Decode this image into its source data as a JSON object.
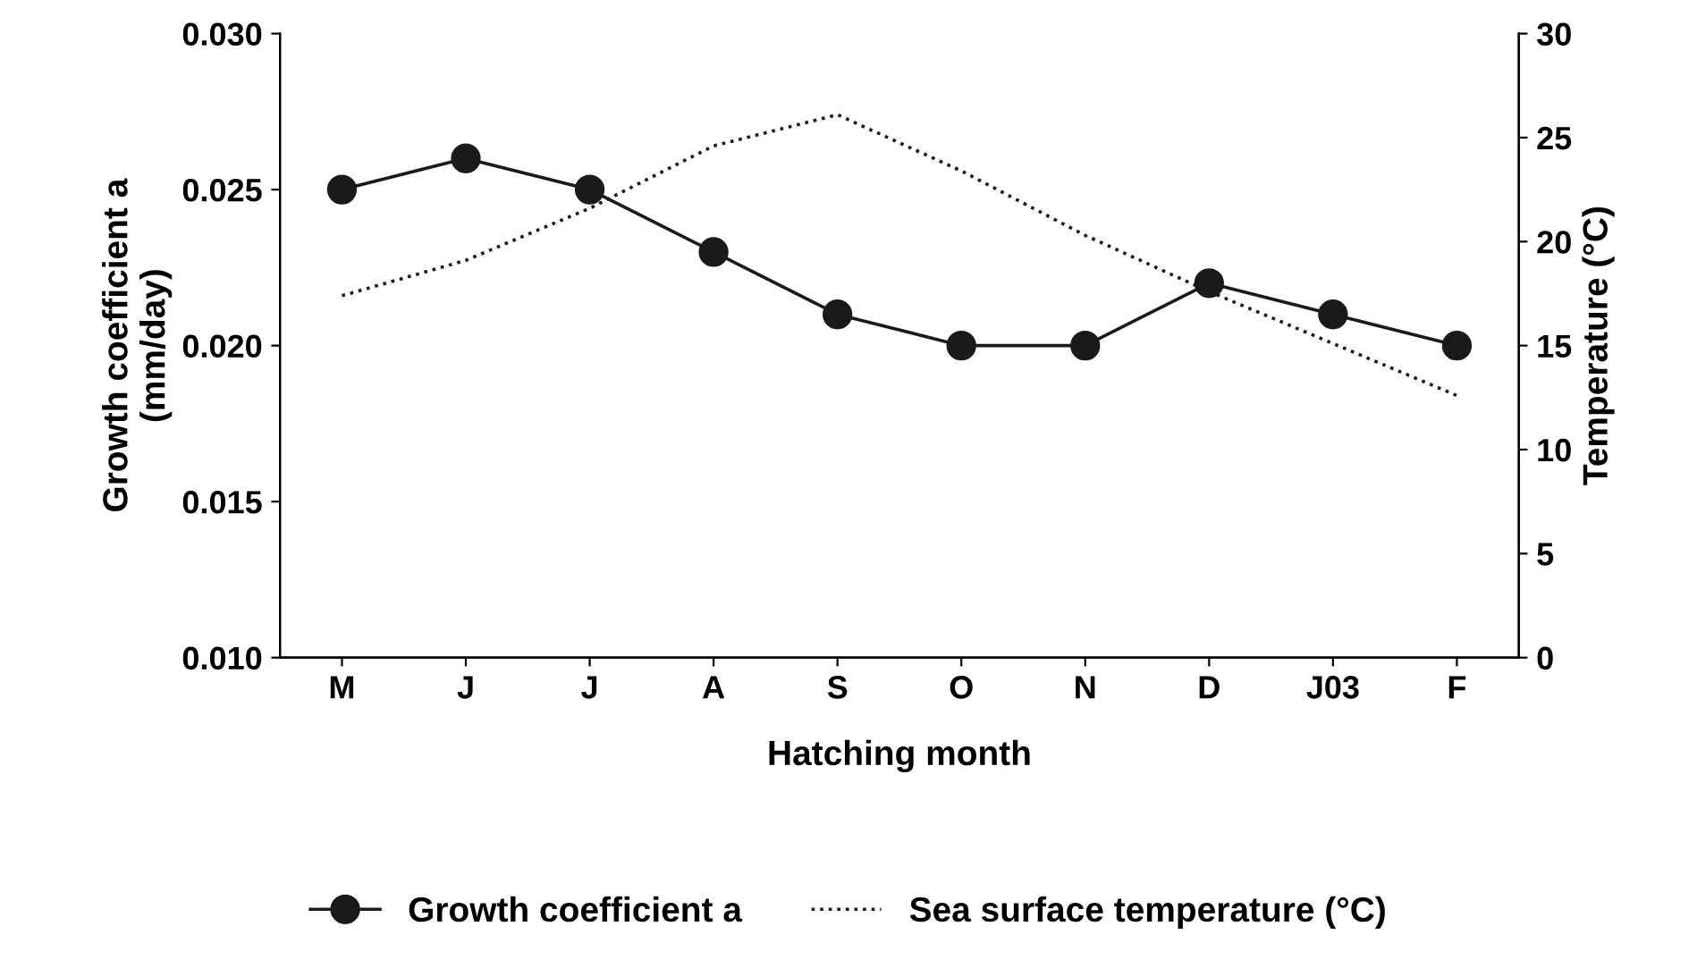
{
  "chart_data": {
    "type": "line",
    "xlabel": "Hatching month",
    "ylabel": "Growth coefficient a\n(mm/day)",
    "y2label": "Temperature (°C)",
    "categories": [
      "M",
      "J",
      "J",
      "A",
      "S",
      "O",
      "N",
      "D",
      "J03",
      "F"
    ],
    "series": [
      {
        "name": "Growth coefficient a",
        "color": "#1a1a1a",
        "marker": "circle",
        "line_style": "solid",
        "values": [
          0.025,
          0.026,
          0.025,
          0.023,
          0.021,
          0.02,
          0.02,
          0.022,
          0.021,
          0.02
        ]
      },
      {
        "name": "Sea surface temperature (°C)",
        "color": "#1a1a1a",
        "axis": "y2",
        "marker": "none",
        "line_style": "dotted",
        "values": [
          17.4,
          19.1,
          21.6,
          24.6,
          26.1,
          23.4,
          20.3,
          17.6,
          15.1,
          12.6
        ]
      }
    ],
    "ylim": [
      0.01,
      0.03
    ],
    "yticks": [
      {
        "value": 0.01,
        "label": "0.010"
      },
      {
        "value": 0.015,
        "label": "0.015"
      },
      {
        "value": 0.02,
        "label": "0.020"
      },
      {
        "value": 0.025,
        "label": "0.025"
      },
      {
        "value": 0.03,
        "label": "0.030"
      }
    ],
    "y2lim": [
      0,
      30
    ],
    "y2ticks": [
      0,
      5,
      10,
      15,
      20,
      25,
      30
    ],
    "grid": false,
    "legend": "bottom"
  }
}
